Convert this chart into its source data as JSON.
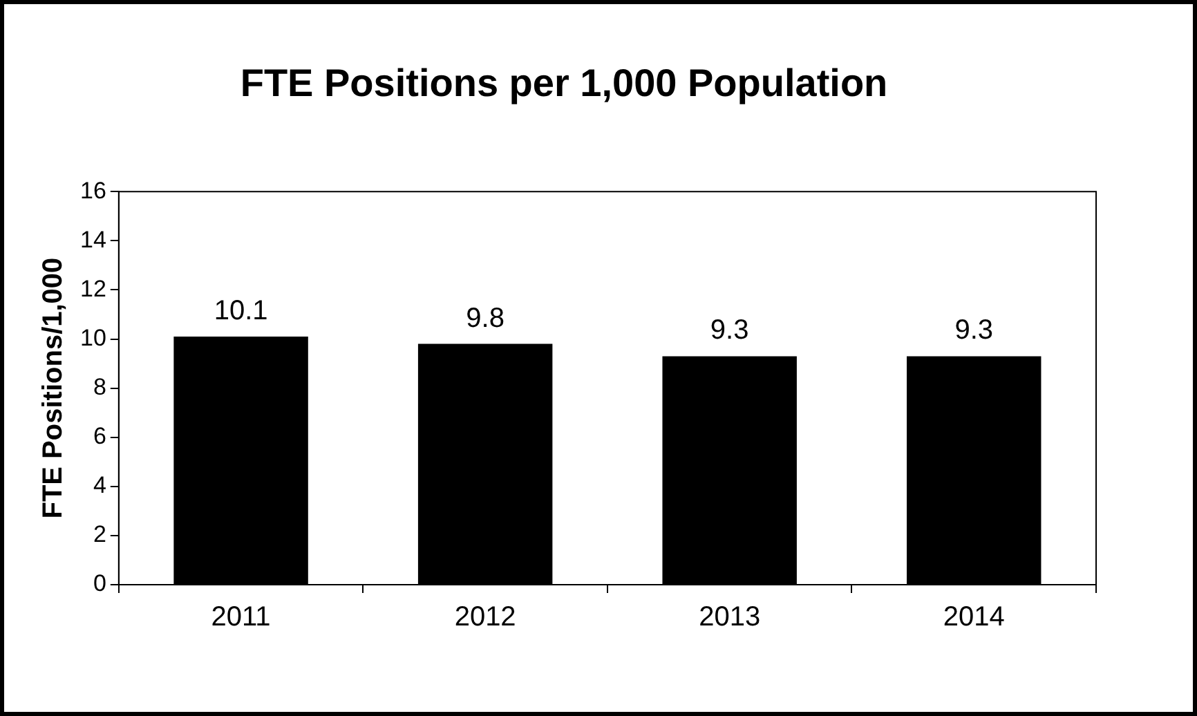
{
  "chart_data": {
    "type": "bar",
    "title": "FTE Positions per 1,000 Population",
    "ylabel": "FTE Positions/1,000",
    "categories": [
      "2011",
      "2012",
      "2013",
      "2014"
    ],
    "values": [
      10.1,
      9.8,
      9.3,
      9.3
    ],
    "color": "#000000",
    "ylim": [
      0,
      16
    ],
    "yticks": [
      0,
      2,
      4,
      6,
      8,
      10,
      12,
      14,
      16
    ],
    "grid": false,
    "data_labels": true
  }
}
